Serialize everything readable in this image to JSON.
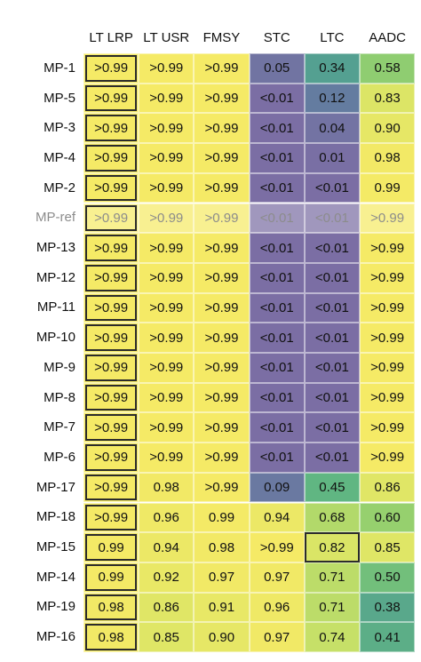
{
  "chart_data": {
    "type": "heatmap",
    "columns": [
      "LT LRP",
      "LT USR",
      "FMSY",
      "STC",
      "LTC",
      "AADC"
    ],
    "rows": [
      "MP-1",
      "MP-5",
      "MP-3",
      "MP-4",
      "MP-2",
      "MP-ref",
      "MP-13",
      "MP-12",
      "MP-11",
      "MP-10",
      "MP-9",
      "MP-8",
      "MP-7",
      "MP-6",
      "MP-17",
      "MP-18",
      "MP-15",
      "MP-14",
      "MP-19",
      "MP-16"
    ],
    "reference_row": "MP-ref",
    "cells": [
      [
        ">0.99",
        ">0.99",
        ">0.99",
        "0.05",
        "0.34",
        "0.58"
      ],
      [
        ">0.99",
        ">0.99",
        ">0.99",
        "<0.01",
        "0.12",
        "0.83"
      ],
      [
        ">0.99",
        ">0.99",
        ">0.99",
        "<0.01",
        "0.04",
        "0.90"
      ],
      [
        ">0.99",
        ">0.99",
        ">0.99",
        "<0.01",
        "0.01",
        "0.98"
      ],
      [
        ">0.99",
        ">0.99",
        ">0.99",
        "<0.01",
        "<0.01",
        "0.99"
      ],
      [
        ">0.99",
        ">0.99",
        ">0.99",
        "<0.01",
        "<0.01",
        ">0.99"
      ],
      [
        ">0.99",
        ">0.99",
        ">0.99",
        "<0.01",
        "<0.01",
        ">0.99"
      ],
      [
        ">0.99",
        ">0.99",
        ">0.99",
        "<0.01",
        "<0.01",
        ">0.99"
      ],
      [
        ">0.99",
        ">0.99",
        ">0.99",
        "<0.01",
        "<0.01",
        ">0.99"
      ],
      [
        ">0.99",
        ">0.99",
        ">0.99",
        "<0.01",
        "<0.01",
        ">0.99"
      ],
      [
        ">0.99",
        ">0.99",
        ">0.99",
        "<0.01",
        "<0.01",
        ">0.99"
      ],
      [
        ">0.99",
        ">0.99",
        ">0.99",
        "<0.01",
        "<0.01",
        ">0.99"
      ],
      [
        ">0.99",
        ">0.99",
        ">0.99",
        "<0.01",
        "<0.01",
        ">0.99"
      ],
      [
        ">0.99",
        ">0.99",
        ">0.99",
        "<0.01",
        "<0.01",
        ">0.99"
      ],
      [
        ">0.99",
        "0.98",
        ">0.99",
        "0.09",
        "0.45",
        "0.86"
      ],
      [
        ">0.99",
        "0.96",
        "0.99",
        "0.94",
        "0.68",
        "0.60"
      ],
      [
        "0.99",
        "0.94",
        "0.98",
        ">0.99",
        "0.82",
        "0.85"
      ],
      [
        "0.99",
        "0.92",
        "0.97",
        "0.97",
        "0.71",
        "0.50"
      ],
      [
        "0.98",
        "0.86",
        "0.91",
        "0.96",
        "0.71",
        "0.38"
      ],
      [
        "0.98",
        "0.85",
        "0.90",
        "0.97",
        "0.74",
        "0.41"
      ]
    ],
    "outlined_column": "LT LRP",
    "outlined_cells": [
      {
        "row": "MP-15",
        "column": "LTC"
      }
    ],
    "colormap": "viridis",
    "colors": {
      "low": "#7b6ea4",
      "high": "#f5ea66",
      "ref_overlay": "#ffffff",
      "outline": "#2b2b2b"
    }
  }
}
